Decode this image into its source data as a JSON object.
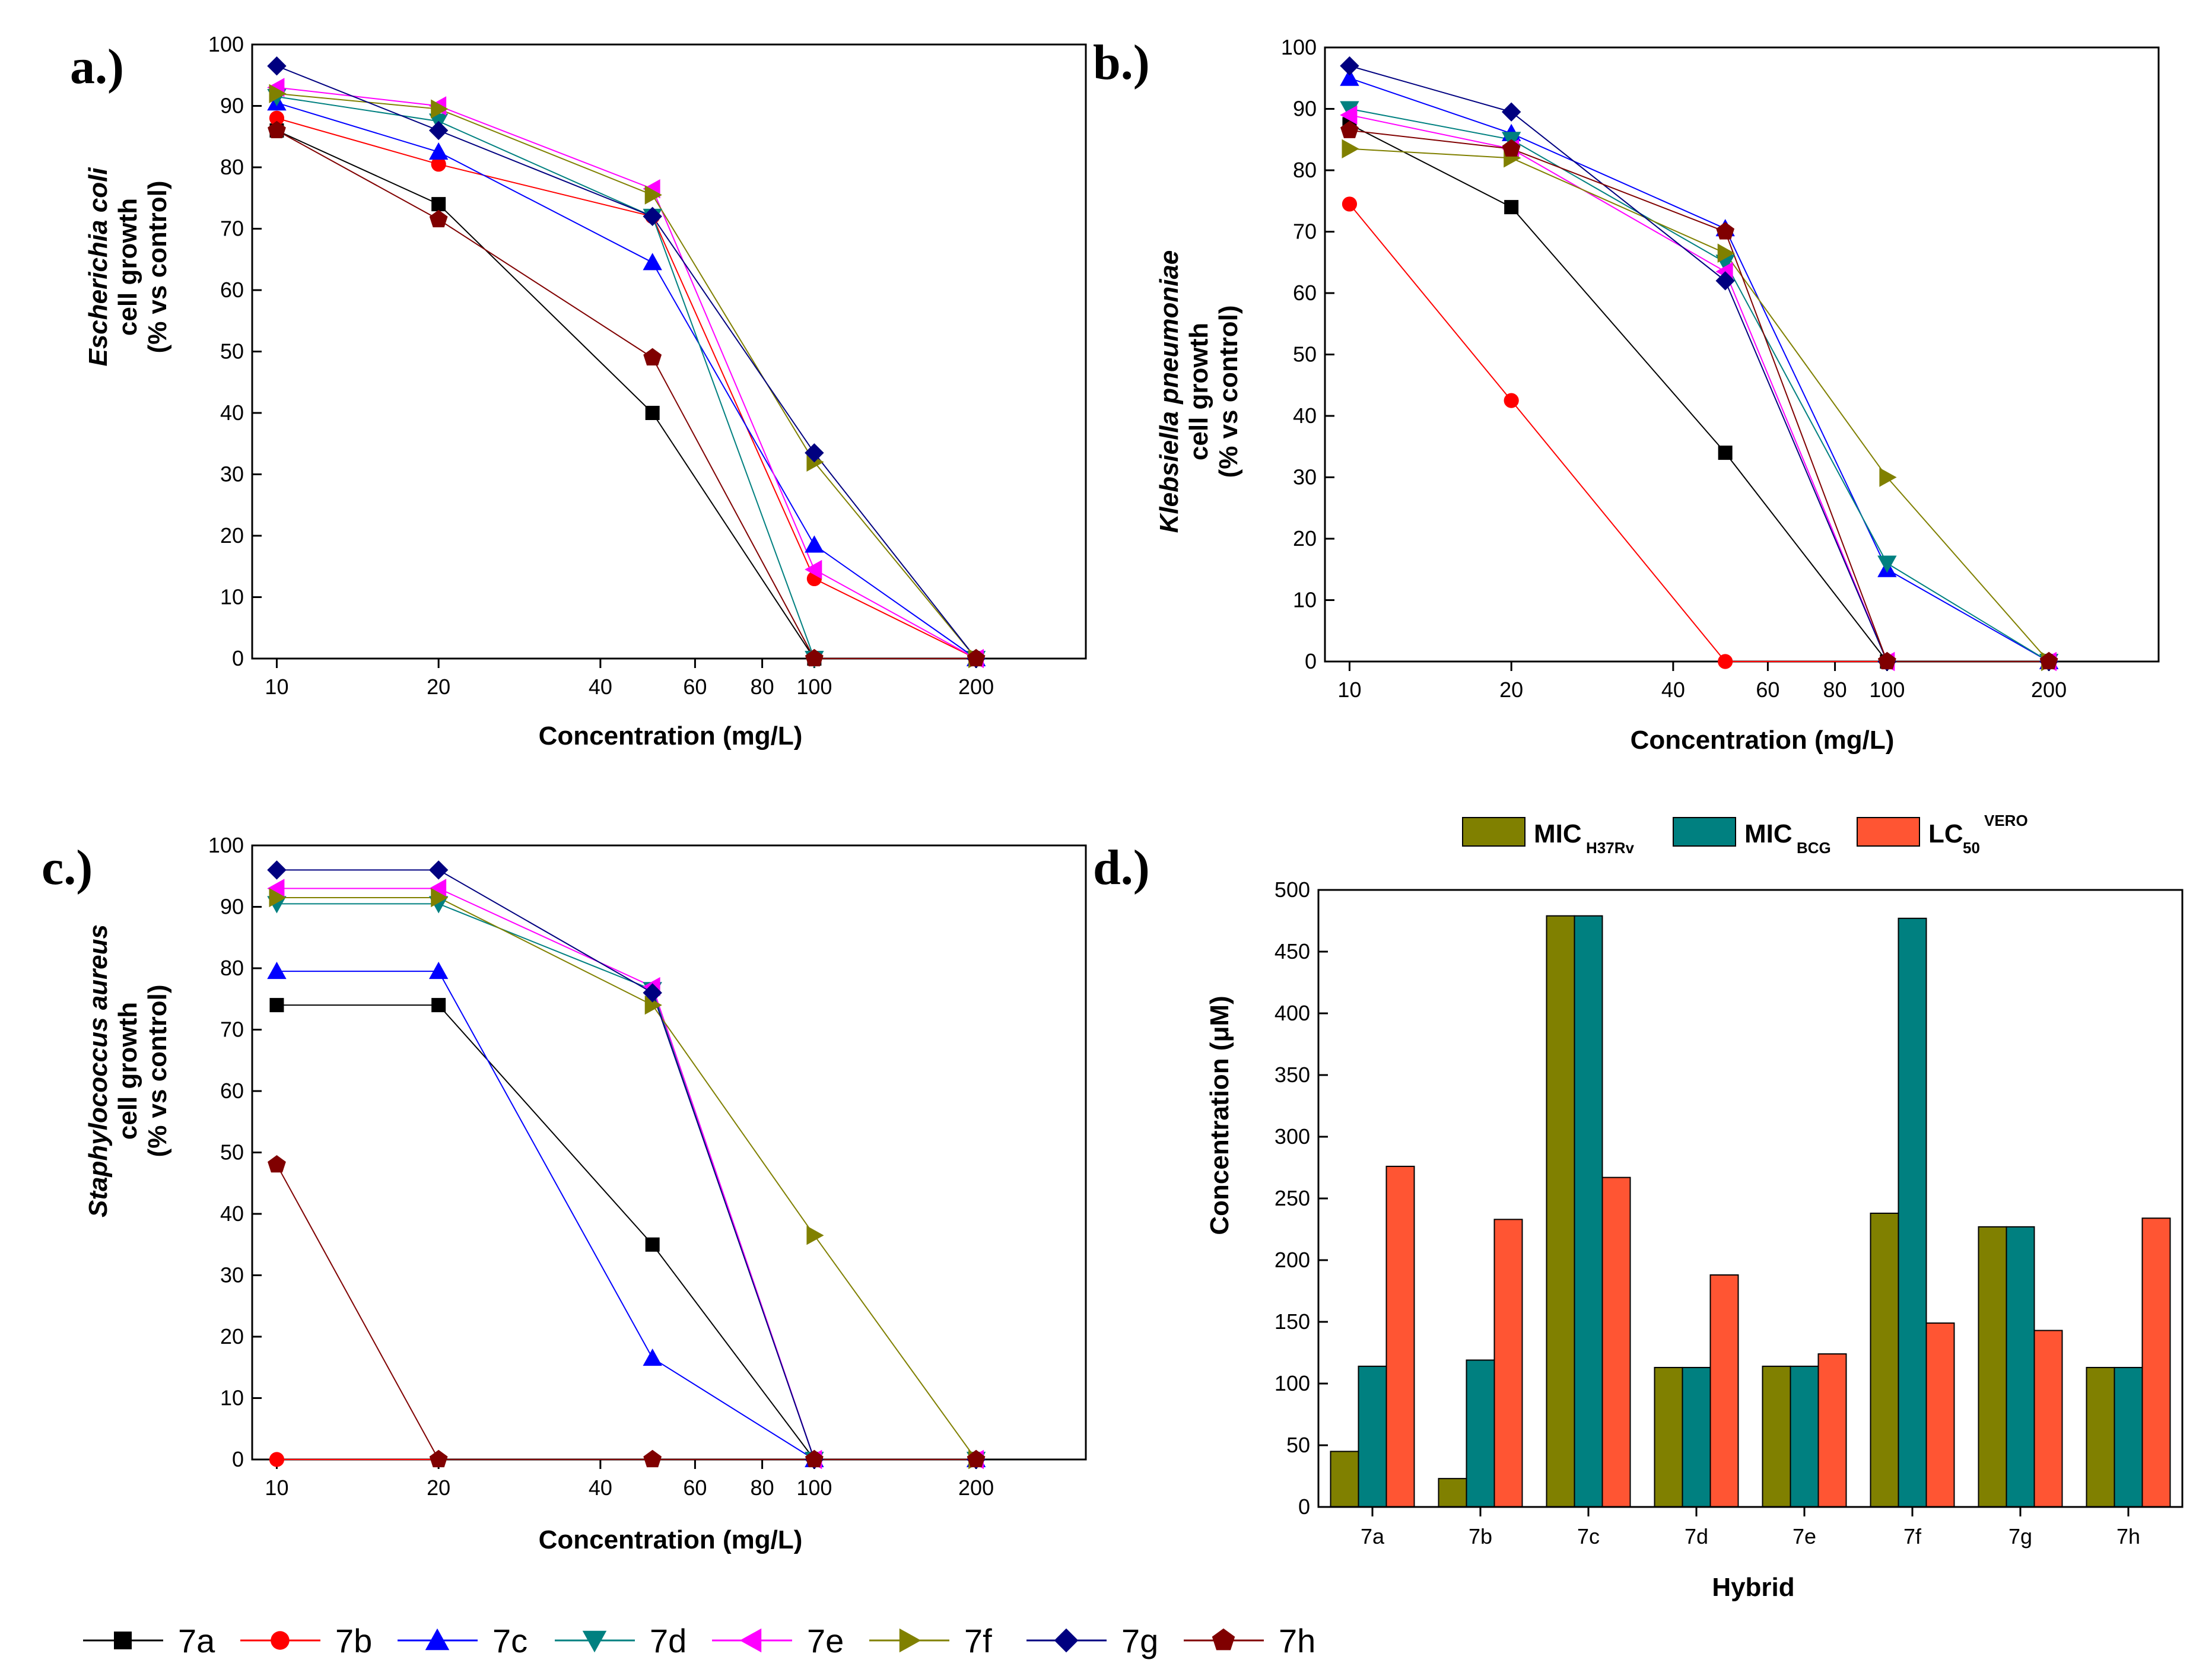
{
  "panels": [
    {
      "label": "a.)",
      "ylabel_species": "Escherichia coli",
      "ylabel_line2": "cell growth",
      "ylabel_line3": "(% vs control)",
      "xlabel": "Concentration (mg/L)"
    },
    {
      "label": "b.)",
      "ylabel_species": "Klebsiella pneumoniae",
      "ylabel_line2": "cell growth",
      "ylabel_line3": "(% vs control)",
      "xlabel": "Concentration (mg/L)"
    },
    {
      "label": "c.)",
      "ylabel_species": "Staphylococcus aureus",
      "ylabel_line2": "cell growth",
      "ylabel_line3": "(% vs control)",
      "xlabel": "Concentration (mg/L)"
    },
    {
      "label": "d.)",
      "xlabel": "Hybrid",
      "ylabel": "Concentration (μM)"
    }
  ],
  "line_legend": [
    {
      "name": "7a",
      "color": "#000000",
      "marker": "square"
    },
    {
      "name": "7b",
      "color": "#ff0000",
      "marker": "circle"
    },
    {
      "name": "7c",
      "color": "#0000ff",
      "marker": "triangle-up"
    },
    {
      "name": "7d",
      "color": "#008080",
      "marker": "triangle-down"
    },
    {
      "name": "7e",
      "color": "#ff00ff",
      "marker": "triangle-left"
    },
    {
      "name": "7f",
      "color": "#808000",
      "marker": "triangle-right"
    },
    {
      "name": "7g",
      "color": "#000080",
      "marker": "diamond"
    },
    {
      "name": "7h",
      "color": "#800000",
      "marker": "pentagon"
    }
  ],
  "bar_legend": [
    {
      "main": "MIC",
      "sub": "H37Rv",
      "sup": "",
      "color": "#808000"
    },
    {
      "main": "MIC",
      "sub": "BCG",
      "sup": "",
      "color": "#008080"
    },
    {
      "main": "LC",
      "sub": "50",
      "sup": "VERO",
      "color": "#ff5533"
    }
  ],
  "chart_data": [
    {
      "type": "line",
      "title": "a.)",
      "xlabel": "Concentration (mg/L)",
      "ylabel": "Escherichia coli cell growth (% vs control)",
      "x_scale": "log",
      "xlim": [
        9,
        320
      ],
      "xticks": [
        10,
        20,
        40,
        60,
        80,
        100,
        200
      ],
      "ylim": [
        0,
        100
      ],
      "yticks": [
        0,
        10,
        20,
        30,
        40,
        50,
        60,
        70,
        80,
        90,
        100
      ],
      "x": [
        10,
        20,
        50,
        100,
        200
      ],
      "series": [
        {
          "name": "7a",
          "values": [
            86,
            74,
            40,
            0,
            0
          ]
        },
        {
          "name": "7b",
          "values": [
            88,
            80.5,
            72,
            13,
            0
          ]
        },
        {
          "name": "7c",
          "values": [
            90.5,
            82.5,
            64.5,
            18.5,
            0
          ]
        },
        {
          "name": "7d",
          "values": [
            91.5,
            87.5,
            72,
            0,
            0
          ]
        },
        {
          "name": "7e",
          "values": [
            93,
            90,
            76.5,
            14.5,
            0
          ]
        },
        {
          "name": "7f",
          "values": [
            92,
            89.5,
            75.5,
            32,
            0
          ]
        },
        {
          "name": "7g",
          "values": [
            96.5,
            86,
            72,
            33.5,
            0
          ]
        },
        {
          "name": "7h",
          "values": [
            86,
            71.5,
            49,
            0,
            0
          ]
        }
      ]
    },
    {
      "type": "line",
      "title": "b.)",
      "xlabel": "Concentration (mg/L)",
      "ylabel": "Klebsiella pneumoniae cell growth (% vs control)",
      "x_scale": "log",
      "xlim": [
        9,
        320
      ],
      "xticks": [
        10,
        20,
        40,
        60,
        80,
        100,
        200
      ],
      "ylim": [
        0,
        100
      ],
      "yticks": [
        0,
        10,
        20,
        30,
        40,
        50,
        60,
        70,
        80,
        90,
        100
      ],
      "x": [
        10,
        20,
        50,
        100,
        200
      ],
      "series": [
        {
          "name": "7a",
          "values": [
            87.5,
            74,
            34,
            0,
            0
          ]
        },
        {
          "name": "7b",
          "values": [
            74.5,
            42.5,
            0,
            0,
            0
          ]
        },
        {
          "name": "7c",
          "values": [
            95,
            86,
            70.5,
            15,
            0
          ]
        },
        {
          "name": "7d",
          "values": [
            90,
            85,
            65,
            16,
            0
          ]
        },
        {
          "name": "7e",
          "values": [
            89,
            83.5,
            63.5,
            0,
            0
          ]
        },
        {
          "name": "7f",
          "values": [
            83.5,
            82,
            66.5,
            30,
            0
          ]
        },
        {
          "name": "7g",
          "values": [
            97,
            89.5,
            62,
            0,
            0
          ]
        },
        {
          "name": "7h",
          "values": [
            86.5,
            83.5,
            70,
            0,
            0
          ]
        }
      ]
    },
    {
      "type": "line",
      "title": "c.)",
      "xlabel": "Concentration (mg/L)",
      "ylabel": "Staphylococcus aureus cell growth (% vs control)",
      "x_scale": "log",
      "xlim": [
        9,
        320
      ],
      "xticks": [
        10,
        20,
        40,
        60,
        80,
        100,
        200
      ],
      "ylim": [
        0,
        100
      ],
      "yticks": [
        0,
        10,
        20,
        30,
        40,
        50,
        60,
        70,
        80,
        90,
        100
      ],
      "x": [
        10,
        20,
        50,
        100,
        200
      ],
      "series": [
        {
          "name": "7a",
          "values": [
            74,
            74,
            35,
            0,
            0
          ]
        },
        {
          "name": "7b",
          "values": [
            0,
            0,
            0,
            0,
            0
          ]
        },
        {
          "name": "7c",
          "values": [
            79.5,
            79.5,
            16.5,
            0,
            0
          ]
        },
        {
          "name": "7d",
          "values": [
            90.5,
            90.5,
            76.5,
            0,
            0
          ]
        },
        {
          "name": "7e",
          "values": [
            93,
            93,
            77,
            0,
            0
          ]
        },
        {
          "name": "7f",
          "values": [
            91.5,
            91.5,
            74,
            36.5,
            0
          ]
        },
        {
          "name": "7g",
          "values": [
            96,
            96,
            76,
            0,
            0
          ]
        },
        {
          "name": "7h",
          "values": [
            48,
            0,
            0,
            0,
            0
          ]
        }
      ]
    },
    {
      "type": "bar",
      "title": "d.)",
      "xlabel": "Hybrid",
      "ylabel": "Concentration (μM)",
      "ylim": [
        0,
        500
      ],
      "yticks": [
        0,
        50,
        100,
        150,
        200,
        250,
        300,
        350,
        400,
        450,
        500
      ],
      "categories": [
        "7a",
        "7b",
        "7c",
        "7d",
        "7e",
        "7f",
        "7g",
        "7h"
      ],
      "series": [
        {
          "name": "MIC H37Rv",
          "values": [
            45,
            23,
            479,
            113,
            114,
            238,
            227,
            113
          ]
        },
        {
          "name": "MIC BCG",
          "values": [
            114,
            119,
            479,
            113,
            114,
            477,
            227,
            113
          ]
        },
        {
          "name": "LC50 VERO",
          "values": [
            276,
            233,
            267,
            188,
            124,
            149,
            143,
            234
          ]
        }
      ]
    }
  ]
}
